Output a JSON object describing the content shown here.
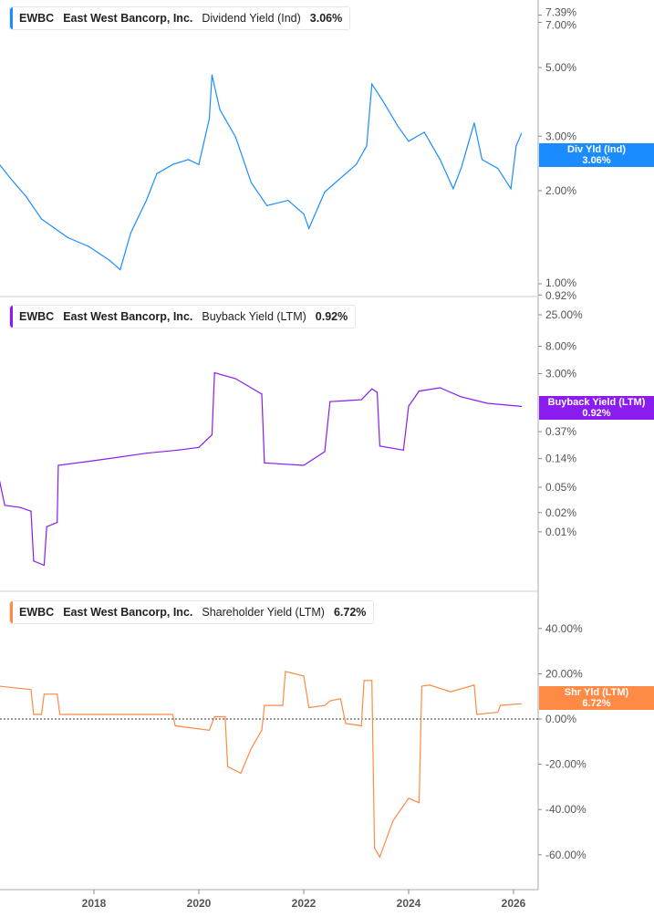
{
  "chart_data": [
    {
      "type": "line",
      "ticker": "EWBC",
      "company": "East West Bancorp, Inc.",
      "metric": "Dividend Yield (Ind)",
      "last_value": "3.06%",
      "badge": {
        "label": "Div Yld (Ind)",
        "value": "3.06%"
      },
      "color": "#1a8cff",
      "scale": "log",
      "y_ticks": [
        "7.39%",
        "7.00%",
        "5.00%",
        "3.00%",
        "2.00%",
        "1.00%",
        "0.92%"
      ],
      "x": [
        2016.2,
        2016.4,
        2016.7,
        2017.0,
        2017.5,
        2017.9,
        2018.3,
        2018.5,
        2018.7,
        2019.0,
        2019.2,
        2019.5,
        2019.8,
        2020.0,
        2020.2,
        2020.25,
        2020.4,
        2020.7,
        2021.0,
        2021.3,
        2021.7,
        2022.0,
        2022.1,
        2022.4,
        2022.8,
        2023.0,
        2023.2,
        2023.3,
        2023.5,
        2023.8,
        2024.0,
        2024.3,
        2024.6,
        2024.85,
        2025.0,
        2025.25,
        2025.4,
        2025.7,
        2025.95,
        2026.05,
        2026.15
      ],
      "values": [
        2.43,
        2.2,
        1.92,
        1.62,
        1.41,
        1.32,
        1.19,
        1.11,
        1.46,
        1.86,
        2.27,
        2.43,
        2.52,
        2.43,
        3.42,
        4.73,
        3.66,
        2.98,
        2.12,
        1.79,
        1.86,
        1.68,
        1.51,
        1.98,
        2.27,
        2.43,
        2.79,
        4.42,
        3.92,
        3.22,
        2.89,
        3.09,
        2.52,
        2.03,
        2.36,
        3.31,
        2.52,
        2.36,
        2.03,
        2.79,
        3.06
      ]
    },
    {
      "type": "line",
      "ticker": "EWBC",
      "company": "East West Bancorp, Inc.",
      "metric": "Buyback Yield (LTM)",
      "last_value": "0.92%",
      "badge": {
        "label": "Buyback Yield (LTM)",
        "value": "0.92%"
      },
      "color": "#8a1cf0",
      "scale": "log",
      "y_ticks": [
        "25.00%",
        "8.00%",
        "3.00%",
        "0.37%",
        "0.14%",
        "0.05%",
        "0.02%",
        "0.01%"
      ],
      "x": [
        2016.2,
        2016.3,
        2016.6,
        2016.8,
        2016.85,
        2017.05,
        2017.1,
        2017.3,
        2017.32,
        2018.0,
        2019.0,
        2019.6,
        2020.0,
        2020.25,
        2020.3,
        2020.7,
        2021.2,
        2021.25,
        2022.0,
        2022.4,
        2022.5,
        2023.1,
        2023.3,
        2023.4,
        2023.45,
        2023.9,
        2024.0,
        2024.2,
        2024.6,
        2025.0,
        2025.5,
        2026.15
      ],
      "values": [
        0.063,
        0.026,
        0.024,
        0.021,
        0.0035,
        0.003,
        0.012,
        0.014,
        0.11,
        0.13,
        0.17,
        0.19,
        0.21,
        0.33,
        3.1,
        2.5,
        1.44,
        0.12,
        0.11,
        0.18,
        1.09,
        1.17,
        1.73,
        1.53,
        0.22,
        0.19,
        0.93,
        1.6,
        1.8,
        1.3,
        1.03,
        0.92
      ]
    },
    {
      "type": "line",
      "ticker": "EWBC",
      "company": "East West Bancorp, Inc.",
      "metric": "Shareholder Yield (LTM)",
      "last_value": "6.72%",
      "badge": {
        "label": "Shr Yld (LTM)",
        "value": "6.72%"
      },
      "color": "#ff8a45",
      "scale": "linear",
      "y_ticks": [
        "40.00%",
        "20.00%",
        "0.00%",
        "-20.00%",
        "-40.00%",
        "-60.00%"
      ],
      "x": [
        2016.2,
        2016.8,
        2016.85,
        2017.0,
        2017.05,
        2017.3,
        2017.35,
        2019.5,
        2019.55,
        2020.2,
        2020.3,
        2020.5,
        2020.55,
        2020.8,
        2021.0,
        2021.2,
        2021.25,
        2021.6,
        2021.65,
        2022.0,
        2022.1,
        2022.4,
        2022.5,
        2022.7,
        2022.8,
        2023.1,
        2023.15,
        2023.3,
        2023.35,
        2023.45,
        2023.7,
        2024.0,
        2024.2,
        2024.25,
        2024.4,
        2024.8,
        2025.25,
        2025.3,
        2025.7,
        2025.75,
        2026.15
      ],
      "values": [
        14.5,
        13,
        2,
        2,
        11,
        11,
        2,
        2,
        -3,
        -5,
        1,
        1,
        -21,
        -24,
        -13,
        -5,
        6,
        6,
        21,
        19,
        5,
        6,
        8,
        9,
        -2,
        -3,
        17,
        17,
        -57,
        -61,
        -45,
        -35,
        -37,
        14.5,
        15,
        12,
        15,
        2,
        3,
        6,
        6.72
      ]
    }
  ],
  "x_ticks": [
    "2018",
    "2020",
    "2022",
    "2024",
    "2026"
  ]
}
